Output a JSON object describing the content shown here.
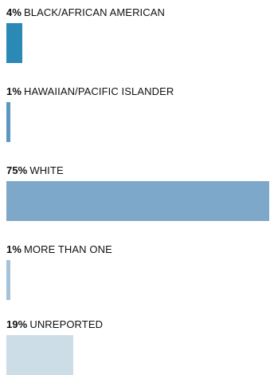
{
  "chart_data": {
    "type": "bar",
    "orientation": "horizontal",
    "max_value": 100,
    "items": [
      {
        "percent": 4,
        "percent_label": "4%",
        "category": "BLACK/AFRICAN AMERICAN",
        "color": "#2b8ab5"
      },
      {
        "percent": 1,
        "percent_label": "1%",
        "category": "HAWAIIAN/PACIFIC ISLANDER",
        "color": "#5b97c1"
      },
      {
        "percent": 75,
        "percent_label": "75%",
        "category": "WHITE",
        "color": "#7ea8c9"
      },
      {
        "percent": 1,
        "percent_label": "1%",
        "category": "MORE THAN ONE",
        "color": "#a6c2d8"
      },
      {
        "percent": 19,
        "percent_label": "19%",
        "category": "UNREPORTED",
        "color": "#cddde8"
      }
    ]
  }
}
